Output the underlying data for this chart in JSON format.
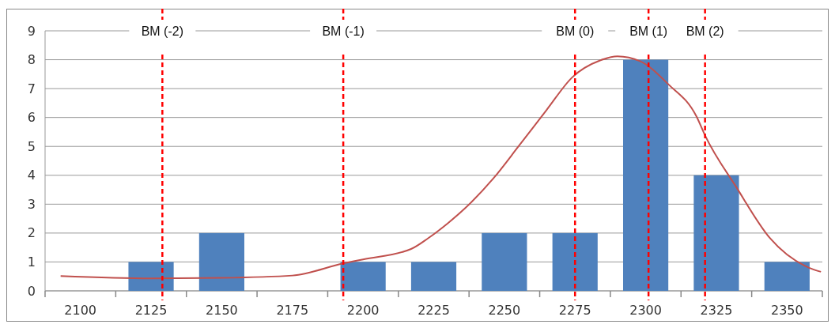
{
  "chart_data": {
    "type": "bar",
    "x": [
      2100,
      2125,
      2150,
      2175,
      2200,
      2225,
      2250,
      2275,
      2300,
      2325,
      2350
    ],
    "xlim": [
      2087.5,
      2362.5
    ],
    "xticks": [
      {
        "value": 2087.5,
        "label": null
      },
      {
        "value": 2100,
        "label": "2100"
      },
      {
        "value": 2112.5,
        "label": null
      },
      {
        "value": 2125,
        "label": "2125"
      },
      {
        "value": 2137.5,
        "label": null
      },
      {
        "value": 2150,
        "label": "2150"
      },
      {
        "value": 2162.5,
        "label": null
      },
      {
        "value": 2175,
        "label": "2175"
      },
      {
        "value": 2187.5,
        "label": null
      },
      {
        "value": 2200,
        "label": "2200"
      },
      {
        "value": 2212.5,
        "label": null
      },
      {
        "value": 2225,
        "label": "2225"
      },
      {
        "value": 2237.5,
        "label": null
      },
      {
        "value": 2250,
        "label": "2250"
      },
      {
        "value": 2262.5,
        "label": null
      },
      {
        "value": 2275,
        "label": "2275"
      },
      {
        "value": 2287.5,
        "label": null
      },
      {
        "value": 2300,
        "label": "2300"
      },
      {
        "value": 2312.5,
        "label": null
      },
      {
        "value": 2325,
        "label": "2325"
      },
      {
        "value": 2337.5,
        "label": null
      },
      {
        "value": 2350,
        "label": "2350"
      },
      {
        "value": 2362.5,
        "label": null
      }
    ],
    "ylim": [
      0,
      9
    ],
    "yticks": [
      0,
      1,
      2,
      3,
      4,
      5,
      6,
      7,
      8,
      9
    ],
    "grid": "y",
    "series": [
      {
        "color": "#4f81bd",
        "values": [
          0,
          1,
          2,
          0,
          1,
          1,
          2,
          2,
          8,
          4,
          1
        ]
      },
      {
        "type": "line",
        "color": "#c0504d",
        "x": [
          2093,
          2125,
          2150,
          2175,
          2193,
          2200,
          2217,
          2223,
          2230,
          2236,
          2246,
          2255,
          2265,
          2274,
          2284,
          2290,
          2298,
          2308,
          2318,
          2321,
          2332,
          2344,
          2358,
          2362
        ],
        "values": [
          0.51,
          0.43,
          0.45,
          0.53,
          0.95,
          1.09,
          1.45,
          1.82,
          2.34,
          2.85,
          3.88,
          5.0,
          6.27,
          7.39,
          7.98,
          8.12,
          7.95,
          7.15,
          6.03,
          5.38,
          3.6,
          1.82,
          0.79,
          0.66
        ]
      }
    ],
    "ref_lines": [
      {
        "axis": "x",
        "value": 2129,
        "label": "BM (-2)",
        "color": "#ff0000",
        "line_style": "dashed"
      },
      {
        "axis": "x",
        "value": 2193,
        "label": "BM (-1)",
        "color": "#ff0000",
        "line_style": "dashed"
      },
      {
        "axis": "x",
        "value": 2275,
        "label": "BM (0)",
        "color": "#ff0000",
        "line_style": "dashed"
      },
      {
        "axis": "x",
        "value": 2301,
        "label": "BM (1)",
        "color": "#ff0000",
        "line_style": "dashed"
      },
      {
        "axis": "x",
        "value": 2321,
        "label": "BM (2)",
        "color": "#ff0000",
        "line_style": "dashed"
      }
    ]
  }
}
